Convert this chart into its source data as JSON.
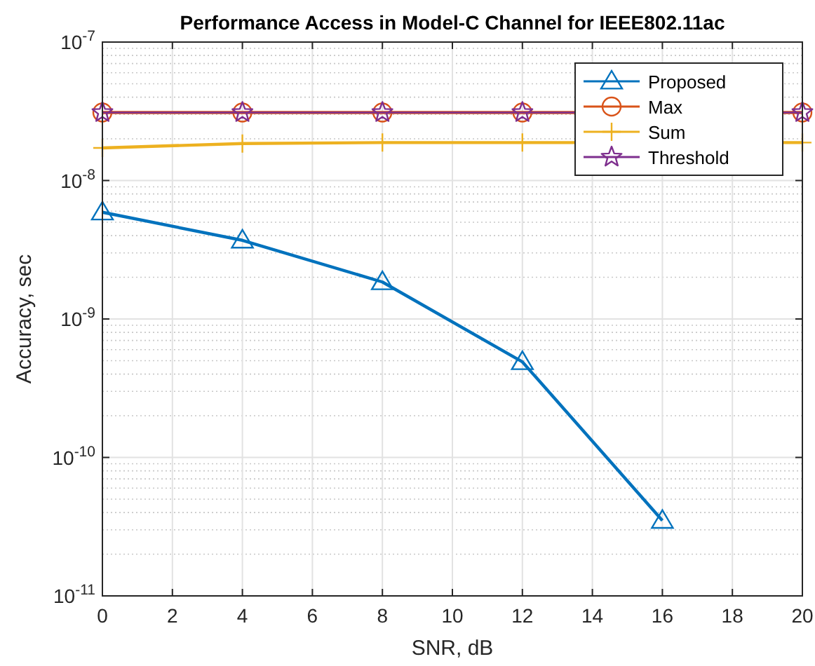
{
  "chart_data": {
    "type": "line",
    "title": "Performance Access in Model-C Channel for IEEE802.11ac",
    "xlabel": "SNR, dB",
    "ylabel": "Accuracy, sec",
    "x": [
      0,
      4,
      8,
      12,
      16
    ],
    "series": [
      {
        "name": "Proposed",
        "color": "#0072bd",
        "marker": "triangle",
        "values": [
          5.9e-09,
          3.7e-09,
          1.85e-09,
          4.9e-10,
          3.5e-11
        ]
      },
      {
        "name": "Max",
        "color": "#d95319",
        "marker": "circle",
        "x": [
          0,
          4,
          8,
          12,
          20
        ],
        "values": [
          3.1e-08,
          3.1e-08,
          3.1e-08,
          3.1e-08,
          3.1e-08
        ]
      },
      {
        "name": "Sum",
        "color": "#edb120",
        "marker": "cross",
        "x": [
          0,
          4,
          8,
          12,
          20
        ],
        "values": [
          1.72e-08,
          1.85e-08,
          1.88e-08,
          1.88e-08,
          1.88e-08
        ]
      },
      {
        "name": "Threshold",
        "color": "#7e2f8e",
        "marker": "star",
        "x": [
          0,
          4,
          8,
          12,
          20
        ],
        "values": [
          3.1e-08,
          3.1e-08,
          3.1e-08,
          3.1e-08,
          3.1e-08
        ]
      }
    ],
    "xlim": [
      0,
      20
    ],
    "xticks": [
      0,
      2,
      4,
      6,
      8,
      10,
      12,
      14,
      16,
      18,
      20
    ],
    "ylim": [
      1e-11,
      1e-07
    ],
    "yticks": [
      {
        "value": 1e-11,
        "label": "10$^{-11}$"
      },
      {
        "value": 1e-10,
        "label": "10$^{-10}$"
      },
      {
        "value": 1e-09,
        "label": "10$^{-9}$"
      },
      {
        "value": 1e-08,
        "label": "10$^{-8}$"
      },
      {
        "value": 1e-07,
        "label": "10$^{-7}$"
      }
    ],
    "log": "y",
    "grid": true,
    "legend": "top right"
  }
}
